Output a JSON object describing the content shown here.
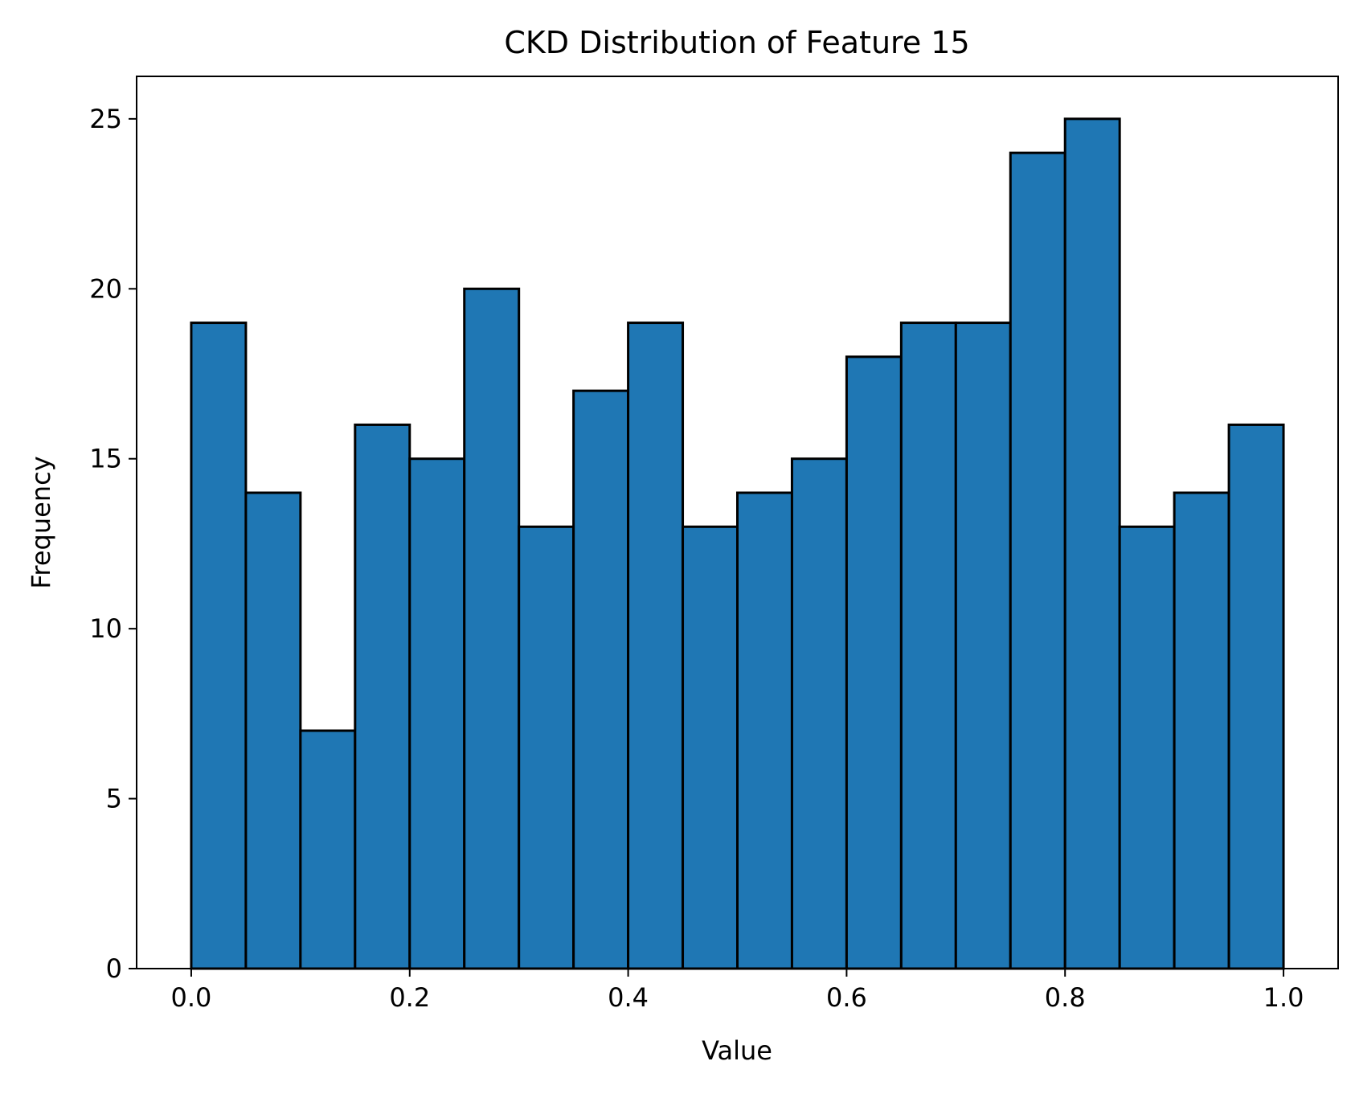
{
  "colors": {
    "bar_fill": "#1f77b4",
    "bar_edge": "#000000",
    "axis": "#000000",
    "background": "#ffffff"
  },
  "chart_data": {
    "type": "bar",
    "title": "CKD Distribution of Feature 15",
    "xlabel": "Value",
    "ylabel": "Frequency",
    "bin_edges": [
      0.0,
      0.05,
      0.1,
      0.15,
      0.2,
      0.25,
      0.3,
      0.35,
      0.4,
      0.45,
      0.5,
      0.55,
      0.6,
      0.65,
      0.7,
      0.75,
      0.8,
      0.85,
      0.9,
      0.95,
      1.0
    ],
    "values": [
      19,
      14,
      7,
      16,
      15,
      20,
      13,
      17,
      19,
      13,
      14,
      15,
      18,
      19,
      19,
      24,
      25,
      13,
      14,
      16
    ],
    "xlim": [
      -0.05,
      1.05
    ],
    "ylim": [
      0,
      26.25
    ],
    "xticks": [
      0.0,
      0.2,
      0.4,
      0.6,
      0.8,
      1.0
    ],
    "xtick_labels": [
      "0.0",
      "0.2",
      "0.4",
      "0.6",
      "0.8",
      "1.0"
    ],
    "yticks": [
      0,
      5,
      10,
      15,
      20,
      25
    ],
    "ytick_labels": [
      "0",
      "5",
      "10",
      "15",
      "20",
      "25"
    ],
    "grid": false,
    "legend": false
  }
}
